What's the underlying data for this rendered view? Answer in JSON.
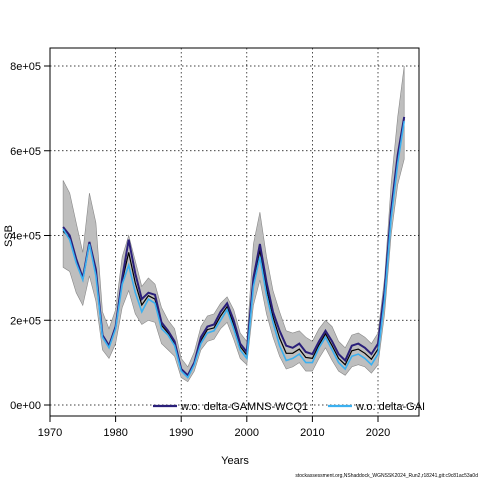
{
  "chart_data": {
    "type": "line",
    "xlabel": "Years",
    "ylabel": "SSB",
    "xlim": [
      1970,
      2025
    ],
    "ylim": [
      0,
      800000
    ],
    "x_ticks": [
      1970,
      1980,
      1990,
      2000,
      2010,
      2020
    ],
    "y_ticks": [
      {
        "value": 0,
        "label": "0e+00"
      },
      {
        "value": 200000,
        "label": "2e+05"
      },
      {
        "value": 400000,
        "label": "4e+05"
      },
      {
        "value": 600000,
        "label": "6e+05"
      },
      {
        "value": 800000,
        "label": "8e+05"
      }
    ],
    "grid": true,
    "legend_position": "bottom-right",
    "years": [
      1972,
      1973,
      1974,
      1975,
      1976,
      1977,
      1978,
      1979,
      1980,
      1981,
      1982,
      1983,
      1984,
      1985,
      1986,
      1987,
      1988,
      1989,
      1990,
      1991,
      1992,
      1993,
      1994,
      1995,
      1996,
      1997,
      1998,
      1999,
      2000,
      2001,
      2002,
      2003,
      2004,
      2005,
      2006,
      2007,
      2008,
      2009,
      2010,
      2011,
      2012,
      2013,
      2014,
      2015,
      2016,
      2017,
      2018,
      2019,
      2020,
      2021,
      2022,
      2023,
      2024
    ],
    "series": [
      {
        "name": "w.o. delta-GAMNS-WCQ1",
        "color": "#2a1f7a",
        "values": [
          420000,
          400000,
          345000,
          300000,
          385000,
          320000,
          165000,
          140000,
          185000,
          300000,
          390000,
          310000,
          250000,
          265000,
          260000,
          195000,
          175000,
          150000,
          85000,
          70000,
          100000,
          160000,
          185000,
          190000,
          220000,
          240000,
          200000,
          145000,
          125000,
          300000,
          380000,
          290000,
          220000,
          175000,
          140000,
          135000,
          145000,
          125000,
          120000,
          150000,
          175000,
          150000,
          120000,
          105000,
          140000,
          145000,
          135000,
          120000,
          145000,
          270000,
          460000,
          590000,
          680000
        ]
      },
      {
        "name": "w.o. delta-GAI",
        "color": "#3ab0f0",
        "values": [
          415000,
          390000,
          335000,
          295000,
          380000,
          305000,
          160000,
          135000,
          180000,
          285000,
          330000,
          265000,
          220000,
          250000,
          240000,
          180000,
          165000,
          140000,
          80000,
          65000,
          95000,
          145000,
          170000,
          175000,
          200000,
          225000,
          180000,
          130000,
          110000,
          280000,
          350000,
          260000,
          195000,
          140000,
          105000,
          110000,
          120000,
          100000,
          100000,
          135000,
          160000,
          130000,
          100000,
          85000,
          115000,
          120000,
          110000,
          95000,
          120000,
          250000,
          440000,
          570000,
          670000
        ]
      }
    ],
    "reference_series": {
      "color": "#000000",
      "values": [
        410000,
        395000,
        340000,
        298000,
        382000,
        312000,
        162000,
        138000,
        182000,
        292000,
        360000,
        288000,
        236000,
        258000,
        250000,
        188000,
        170000,
        145000,
        82000,
        68000,
        98000,
        152000,
        178000,
        182000,
        210000,
        232000,
        190000,
        138000,
        118000,
        290000,
        365000,
        275000,
        208000,
        158000,
        122000,
        122000,
        132000,
        112000,
        110000,
        142000,
        168000,
        140000,
        110000,
        95000,
        128000,
        132000,
        122000,
        108000,
        132000,
        260000,
        450000,
        580000,
        675000
      ]
    },
    "band": {
      "upper": [
        530000,
        500000,
        430000,
        360000,
        500000,
        430000,
        220000,
        180000,
        225000,
        350000,
        400000,
        340000,
        280000,
        300000,
        285000,
        230000,
        200000,
        180000,
        110000,
        90000,
        125000,
        185000,
        210000,
        215000,
        240000,
        255000,
        225000,
        170000,
        150000,
        380000,
        455000,
        350000,
        270000,
        220000,
        175000,
        170000,
        175000,
        160000,
        150000,
        180000,
        200000,
        185000,
        150000,
        135000,
        165000,
        170000,
        160000,
        145000,
        170000,
        300000,
        520000,
        680000,
        800000
      ],
      "lower": [
        325000,
        315000,
        265000,
        235000,
        305000,
        245000,
        130000,
        110000,
        145000,
        230000,
        270000,
        215000,
        190000,
        200000,
        195000,
        145000,
        130000,
        115000,
        65000,
        55000,
        80000,
        130000,
        150000,
        155000,
        180000,
        195000,
        155000,
        110000,
        95000,
        235000,
        295000,
        215000,
        160000,
        115000,
        85000,
        90000,
        100000,
        80000,
        80000,
        110000,
        135000,
        105000,
        80000,
        70000,
        90000,
        95000,
        90000,
        75000,
        95000,
        215000,
        400000,
        520000,
        580000
      ]
    },
    "annotation": "stockassessment.org,NShaddock_WGNSSK2024_Run2,r18241,git:c9c81ac53a0d"
  }
}
